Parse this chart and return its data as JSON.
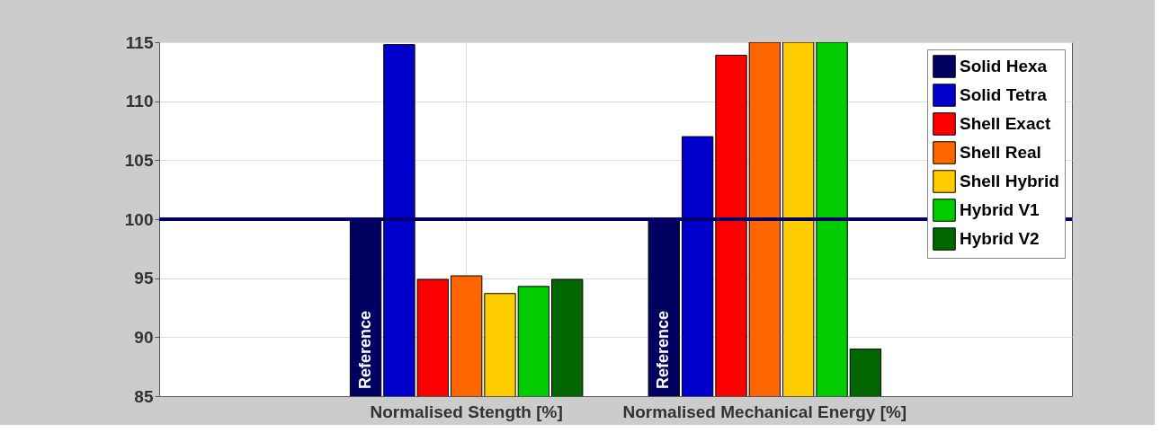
{
  "chart_data": {
    "type": "bar",
    "categories": [
      "Normalised Stength [%]",
      "Normalised Mechanical Energy [%]"
    ],
    "series": [
      {
        "name": "Solid Hexa",
        "color": "#000060",
        "values": [
          100,
          100
        ]
      },
      {
        "name": "Solid Tetra",
        "color": "#0000cc",
        "values": [
          114.8,
          107.0
        ]
      },
      {
        "name": "Shell Exact",
        "color": "#ff0000",
        "values": [
          94.9,
          113.9
        ]
      },
      {
        "name": "Shell Real",
        "color": "#ff6600",
        "values": [
          95.2,
          115
        ]
      },
      {
        "name": "Shell Hybrid",
        "color": "#ffcc00",
        "values": [
          93.7,
          115
        ]
      },
      {
        "name": "Hybrid V1",
        "color": "#00cc00",
        "values": [
          94.3,
          115
        ]
      },
      {
        "name": "Hybrid V2",
        "color": "#006600",
        "values": [
          94.9,
          89.0
        ]
      }
    ],
    "ylim": [
      85,
      115
    ],
    "yticks": [
      85,
      90,
      95,
      100,
      105,
      110,
      115
    ],
    "ref_lines": [
      {
        "axis": "y",
        "value": 100,
        "color": "#000066"
      }
    ],
    "annotations": [
      "Reference",
      "Reference"
    ],
    "grid": true,
    "legend": "top right"
  }
}
